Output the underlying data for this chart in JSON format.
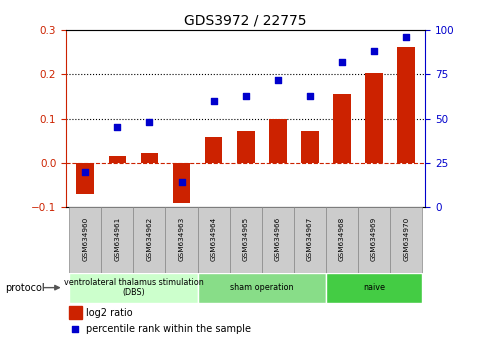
{
  "title": "GDS3972 / 22775",
  "samples": [
    "GSM634960",
    "GSM634961",
    "GSM634962",
    "GSM634963",
    "GSM634964",
    "GSM634965",
    "GSM634966",
    "GSM634967",
    "GSM634968",
    "GSM634969",
    "GSM634970"
  ],
  "log2_ratio": [
    -0.07,
    0.015,
    0.022,
    -0.09,
    0.058,
    0.072,
    0.098,
    0.072,
    0.155,
    0.202,
    0.262
  ],
  "percentile_rank": [
    20,
    45,
    48,
    14,
    60,
    63,
    72,
    63,
    82,
    88,
    96
  ],
  "bar_color": "#cc2200",
  "dot_color": "#0000cc",
  "ylim_left": [
    -0.1,
    0.3
  ],
  "ylim_right": [
    0,
    100
  ],
  "yticks_left": [
    -0.1,
    0.0,
    0.1,
    0.2,
    0.3
  ],
  "yticks_right": [
    0,
    25,
    50,
    75,
    100
  ],
  "hline_y": [
    0.1,
    0.2
  ],
  "zero_line_color": "#cc2200",
  "hline_color": "black",
  "groups": [
    {
      "label": "ventrolateral thalamus stimulation\n(DBS)",
      "start": 0,
      "end": 3,
      "color": "#ccffcc"
    },
    {
      "label": "sham operation",
      "start": 4,
      "end": 7,
      "color": "#88dd88"
    },
    {
      "label": "naive",
      "start": 8,
      "end": 10,
      "color": "#44cc44"
    }
  ],
  "protocol_label": "protocol",
  "legend_bar_label": "log2 ratio",
  "legend_dot_label": "percentile rank within the sample",
  "tick_label_color_left": "#cc2200",
  "tick_label_color_right": "#0000cc",
  "sample_box_color": "#cccccc",
  "sample_box_edge": "#888888"
}
